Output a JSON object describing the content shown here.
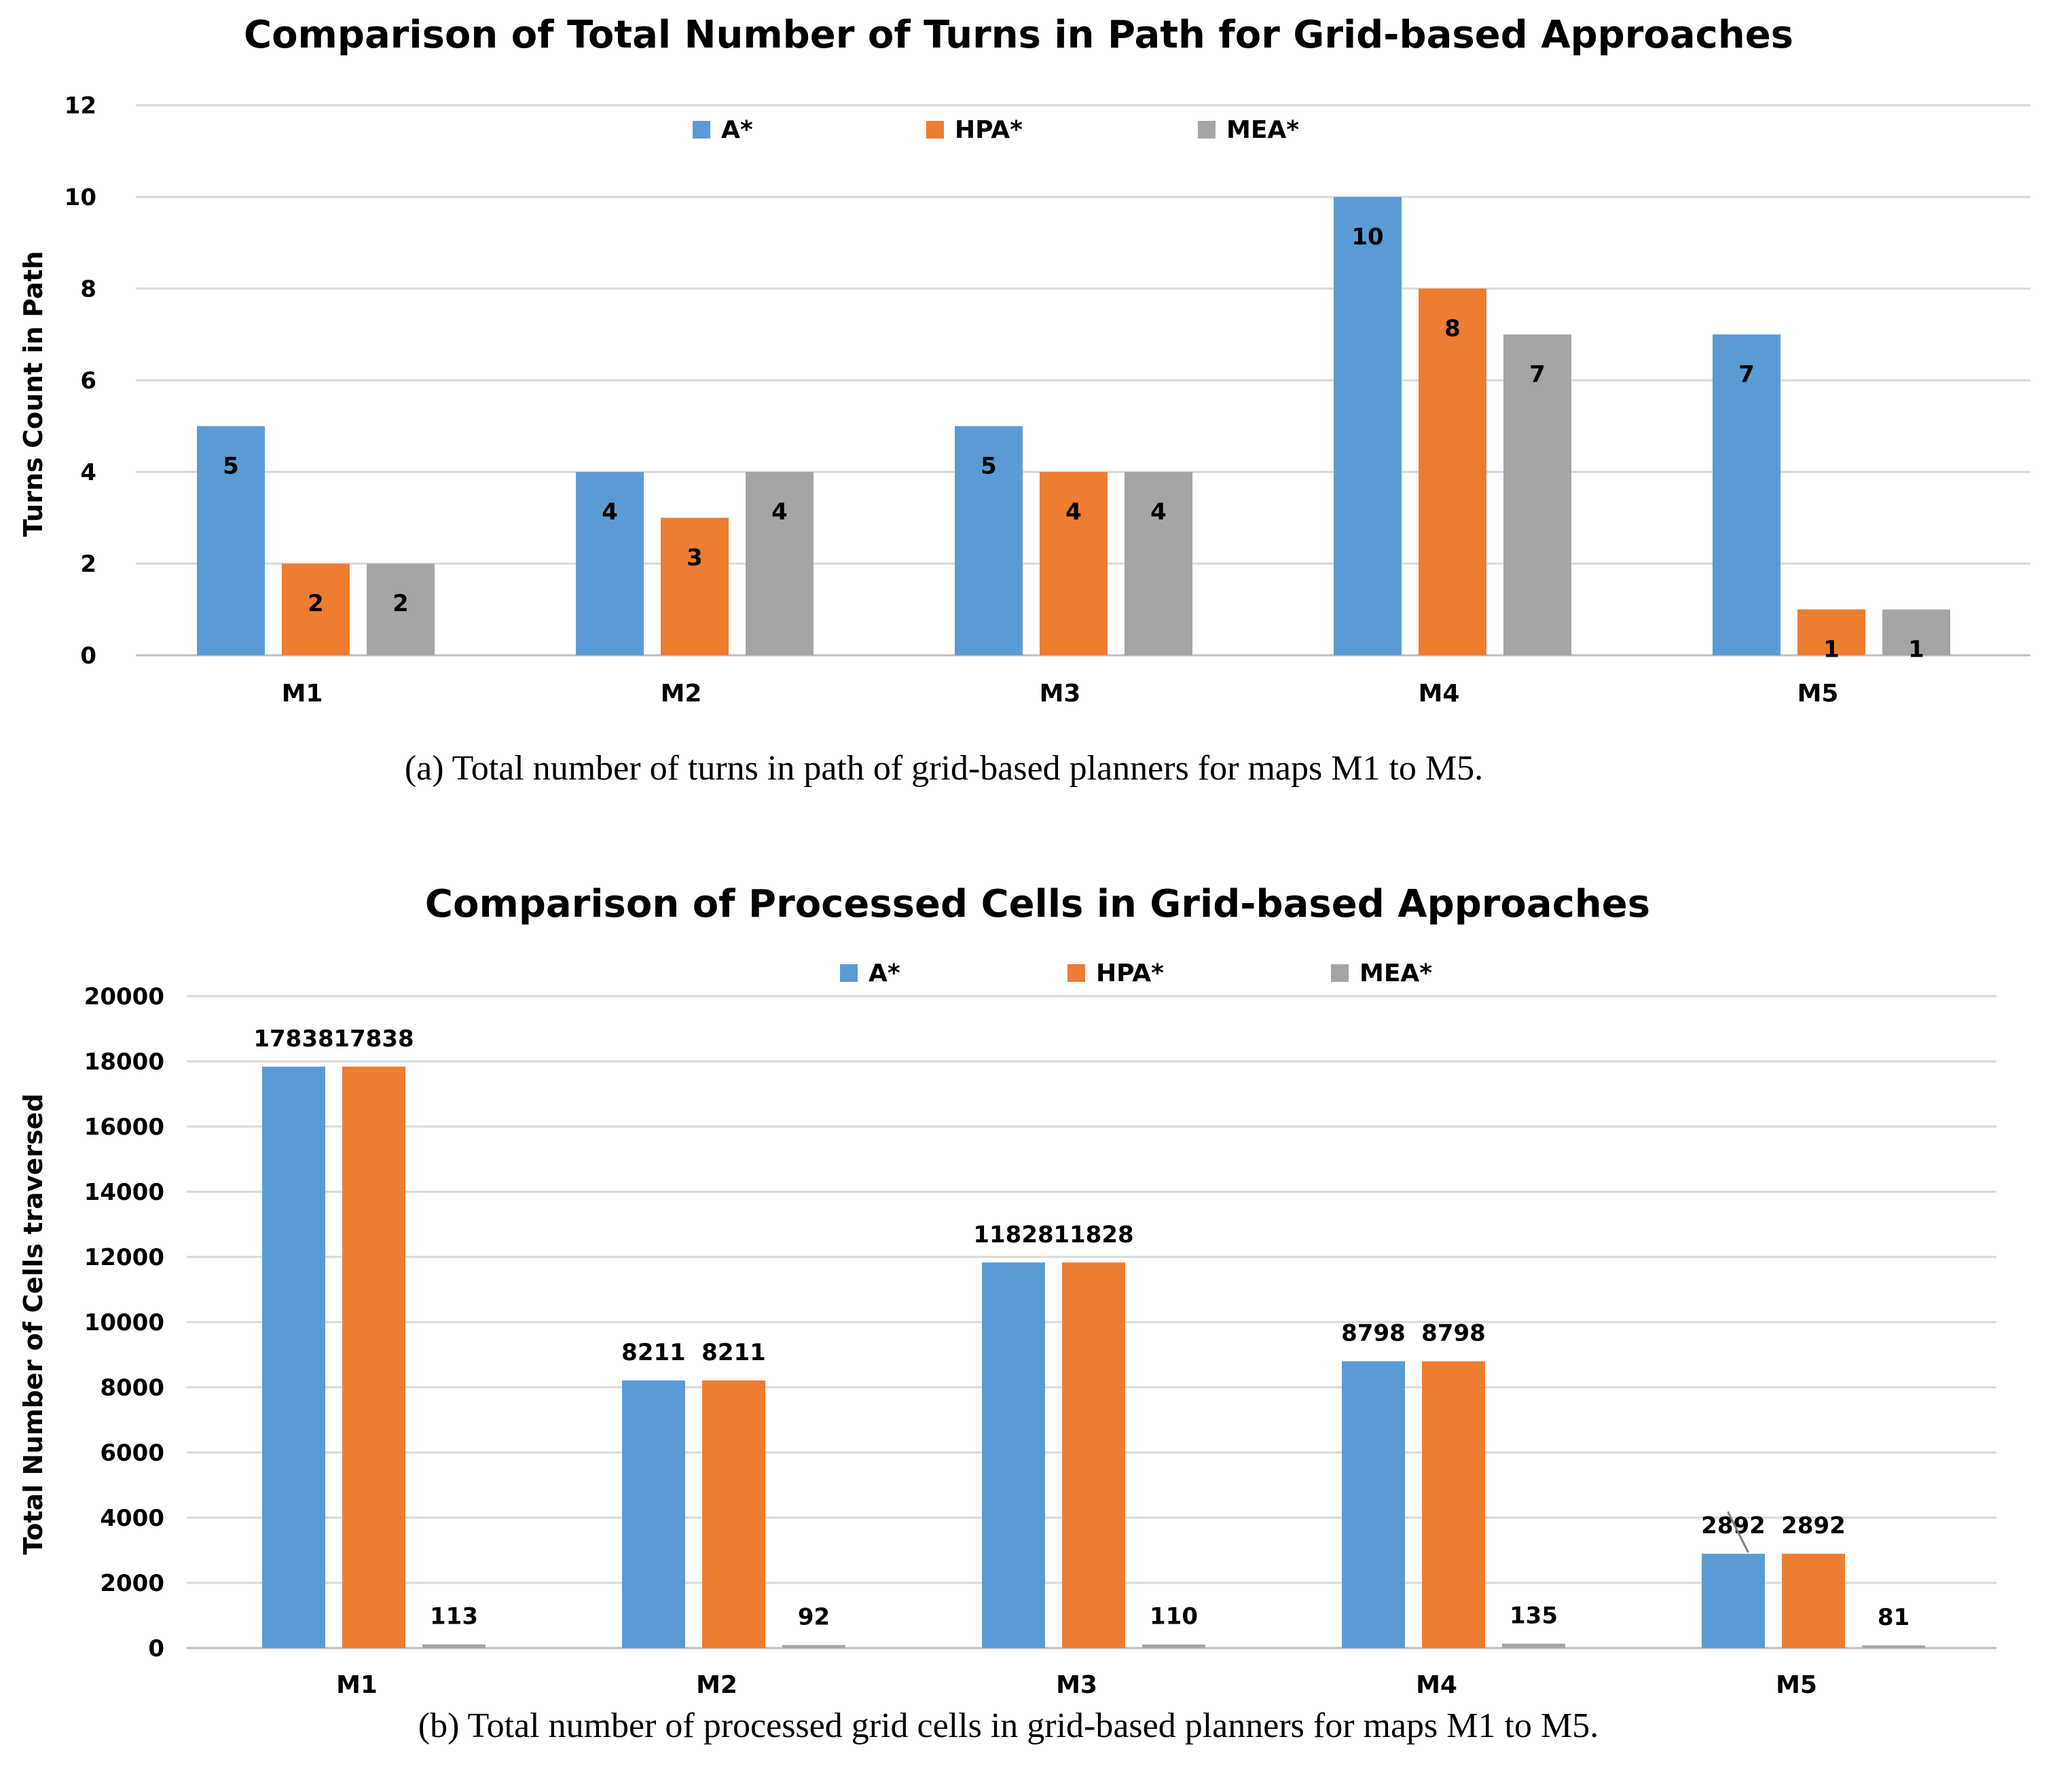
{
  "colors": {
    "A*": "#5b9bd5",
    "HPA*": "#ed7d31",
    "MEA*": "#a5a5a5"
  },
  "chart_data": [
    {
      "type": "bar",
      "title": "Comparison of Total Number of Turns in Path for Grid-based Approaches",
      "xlabel": "",
      "ylabel": "Turns Count in Path",
      "ylim": [
        0,
        12
      ],
      "yticks": [
        0,
        2,
        4,
        6,
        8,
        10,
        12
      ],
      "categories": [
        "M1",
        "M2",
        "M3",
        "M4",
        "M5"
      ],
      "series": [
        {
          "name": "A*",
          "values": [
            5,
            4,
            5,
            10,
            7
          ]
        },
        {
          "name": "HPA*",
          "values": [
            2,
            3,
            4,
            8,
            1
          ]
        },
        {
          "name": "MEA*",
          "values": [
            2,
            4,
            4,
            7,
            1
          ]
        }
      ],
      "data_labels": "inside-top",
      "legend": "top-center",
      "caption": "(a) Total number of turns in path of grid-based planners for maps M1 to M5."
    },
    {
      "type": "bar",
      "title": "Comparison of Processed Cells in Grid-based Approaches",
      "xlabel": "",
      "ylabel": "Total Number of Cells traversed",
      "ylim": [
        0,
        20000
      ],
      "yticks": [
        0,
        2000,
        4000,
        6000,
        8000,
        10000,
        12000,
        14000,
        16000,
        18000,
        20000
      ],
      "categories": [
        "M1",
        "M2",
        "M3",
        "M4",
        "M5"
      ],
      "series": [
        {
          "name": "A*",
          "values": [
            17838,
            8211,
            11828,
            8798,
            2892
          ]
        },
        {
          "name": "HPA*",
          "values": [
            17838,
            8211,
            11828,
            8798,
            2892
          ]
        },
        {
          "name": "MEA*",
          "values": [
            113,
            92,
            110,
            135,
            81
          ]
        }
      ],
      "data_labels": "outside-top",
      "legend": "top-center",
      "caption": "(b) Total number of processed grid cells in grid-based planners for maps M1 to M5."
    }
  ]
}
